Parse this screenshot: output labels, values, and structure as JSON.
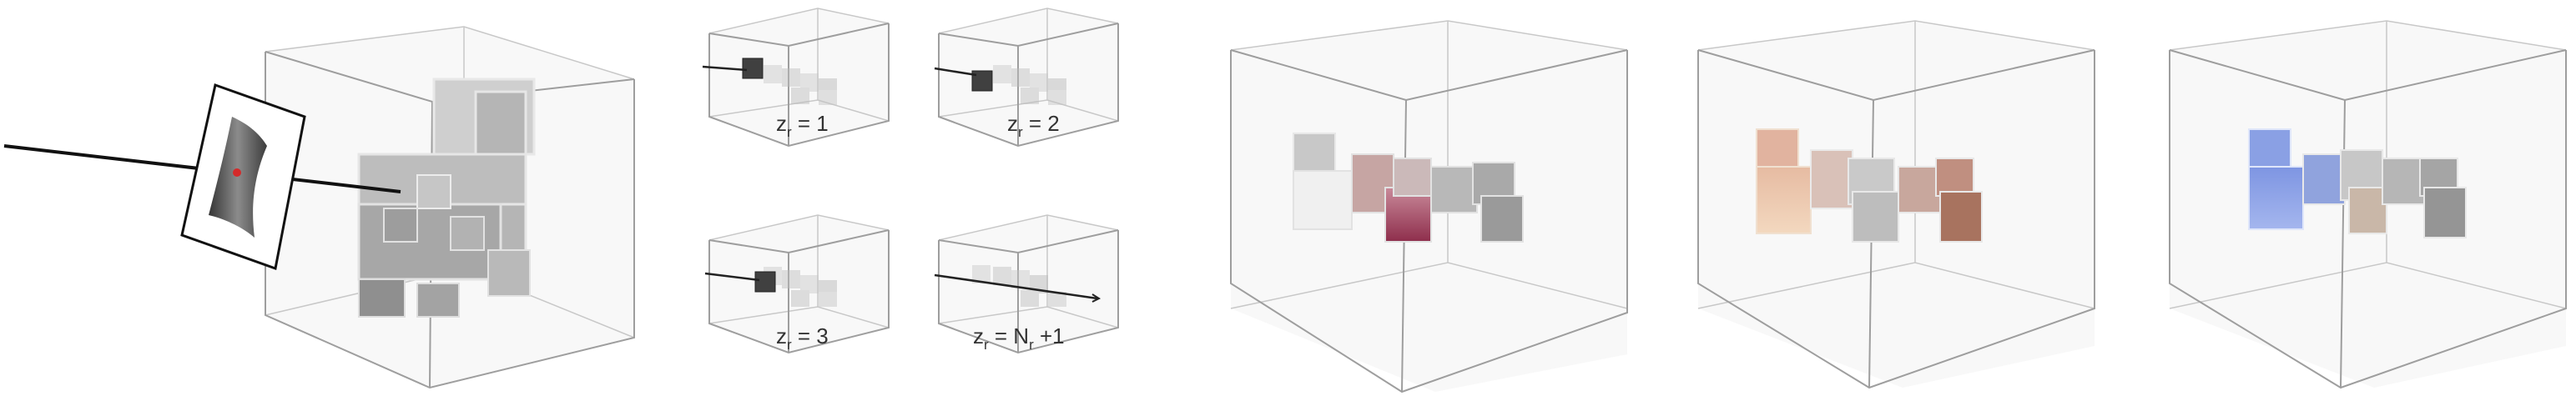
{
  "panels": {
    "left": {
      "name": "render-with-image-plane"
    },
    "steps": [
      {
        "label_main": "z",
        "label_sub": "r",
        "label_rest": " = 1"
      },
      {
        "label_main": "z",
        "label_sub": "r",
        "label_rest": " = 2"
      },
      {
        "label_main": "z",
        "label_sub": "r",
        "label_rest": " = 3"
      },
      {
        "label_main": "z",
        "label_sub": "r",
        "label_rest": " = N",
        "label_sub2": "r",
        "label_end": " +1"
      }
    ],
    "right": [
      {
        "highlight": "#b04a68"
      },
      {
        "highlight": "#e9b89c"
      },
      {
        "highlight": "#6e86d6"
      }
    ]
  }
}
